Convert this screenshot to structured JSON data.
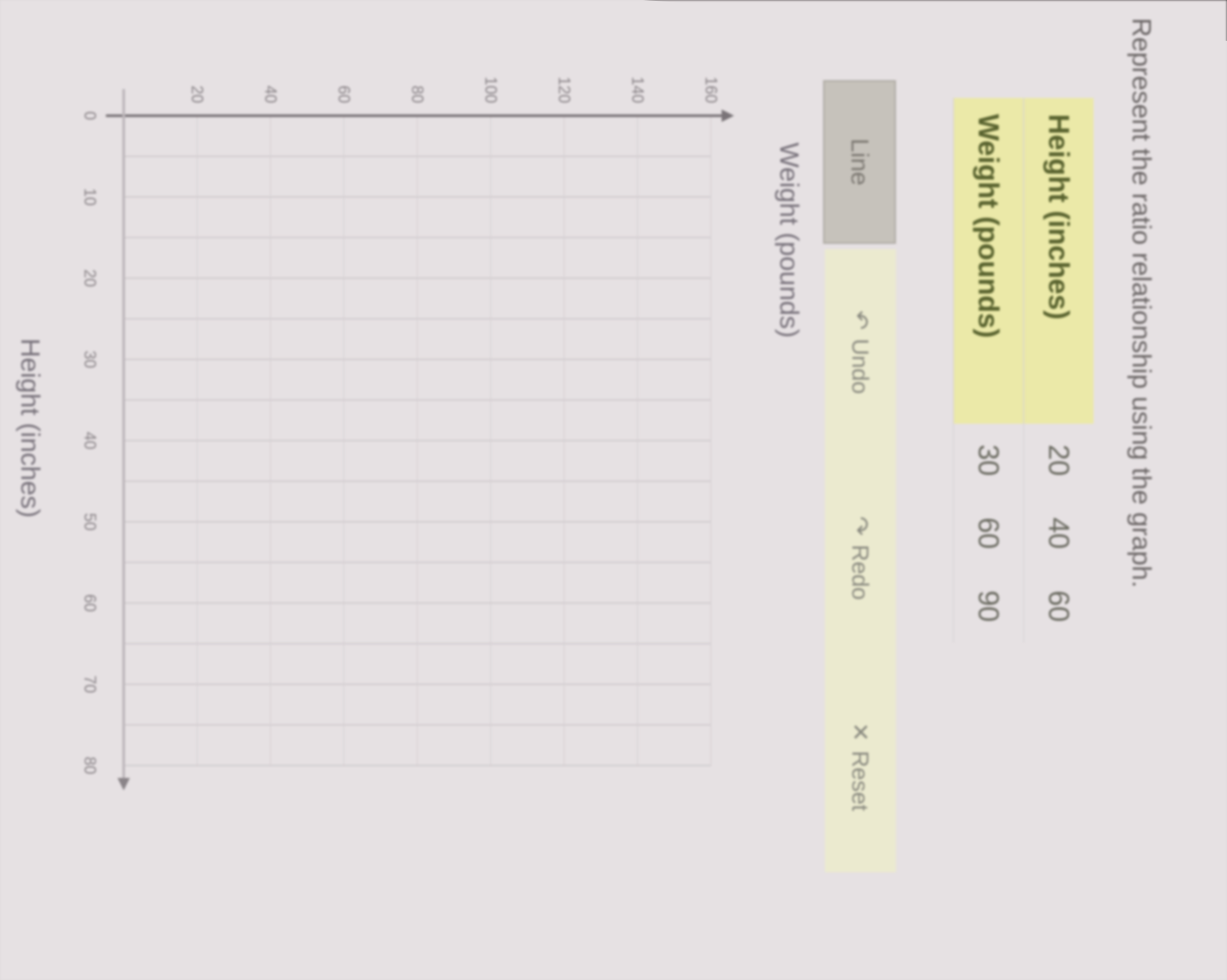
{
  "prompt": "Represent the ratio relationship using the graph.",
  "table": {
    "rows": [
      {
        "label": "Height (inches)",
        "values": [
          "20",
          "40",
          "60"
        ]
      },
      {
        "label": "Weight (pounds)",
        "values": [
          "30",
          "60",
          "90"
        ]
      }
    ]
  },
  "toolbar": {
    "line_label": "Line",
    "undo_label": "Undo",
    "redo_label": "Redo",
    "reset_label": "Reset",
    "undo_icon": "undo-arrow-icon",
    "redo_icon": "redo-arrow-icon",
    "reset_icon": "x-icon"
  },
  "colors": {
    "table_header": "#ebe9a8",
    "toolbar_bg": "#ebeacf",
    "line_button": "#c6c2bb"
  },
  "chart_data": {
    "type": "line",
    "xlabel": "Height (inches)",
    "ylabel": "Weight (pounds)",
    "xlim": [
      0,
      80
    ],
    "ylim": [
      0,
      160
    ],
    "xticks": [
      0,
      10,
      20,
      30,
      40,
      50,
      60,
      70,
      80
    ],
    "yticks": [
      20,
      40,
      60,
      80,
      100,
      120,
      140,
      160
    ],
    "grid": true,
    "series": []
  }
}
